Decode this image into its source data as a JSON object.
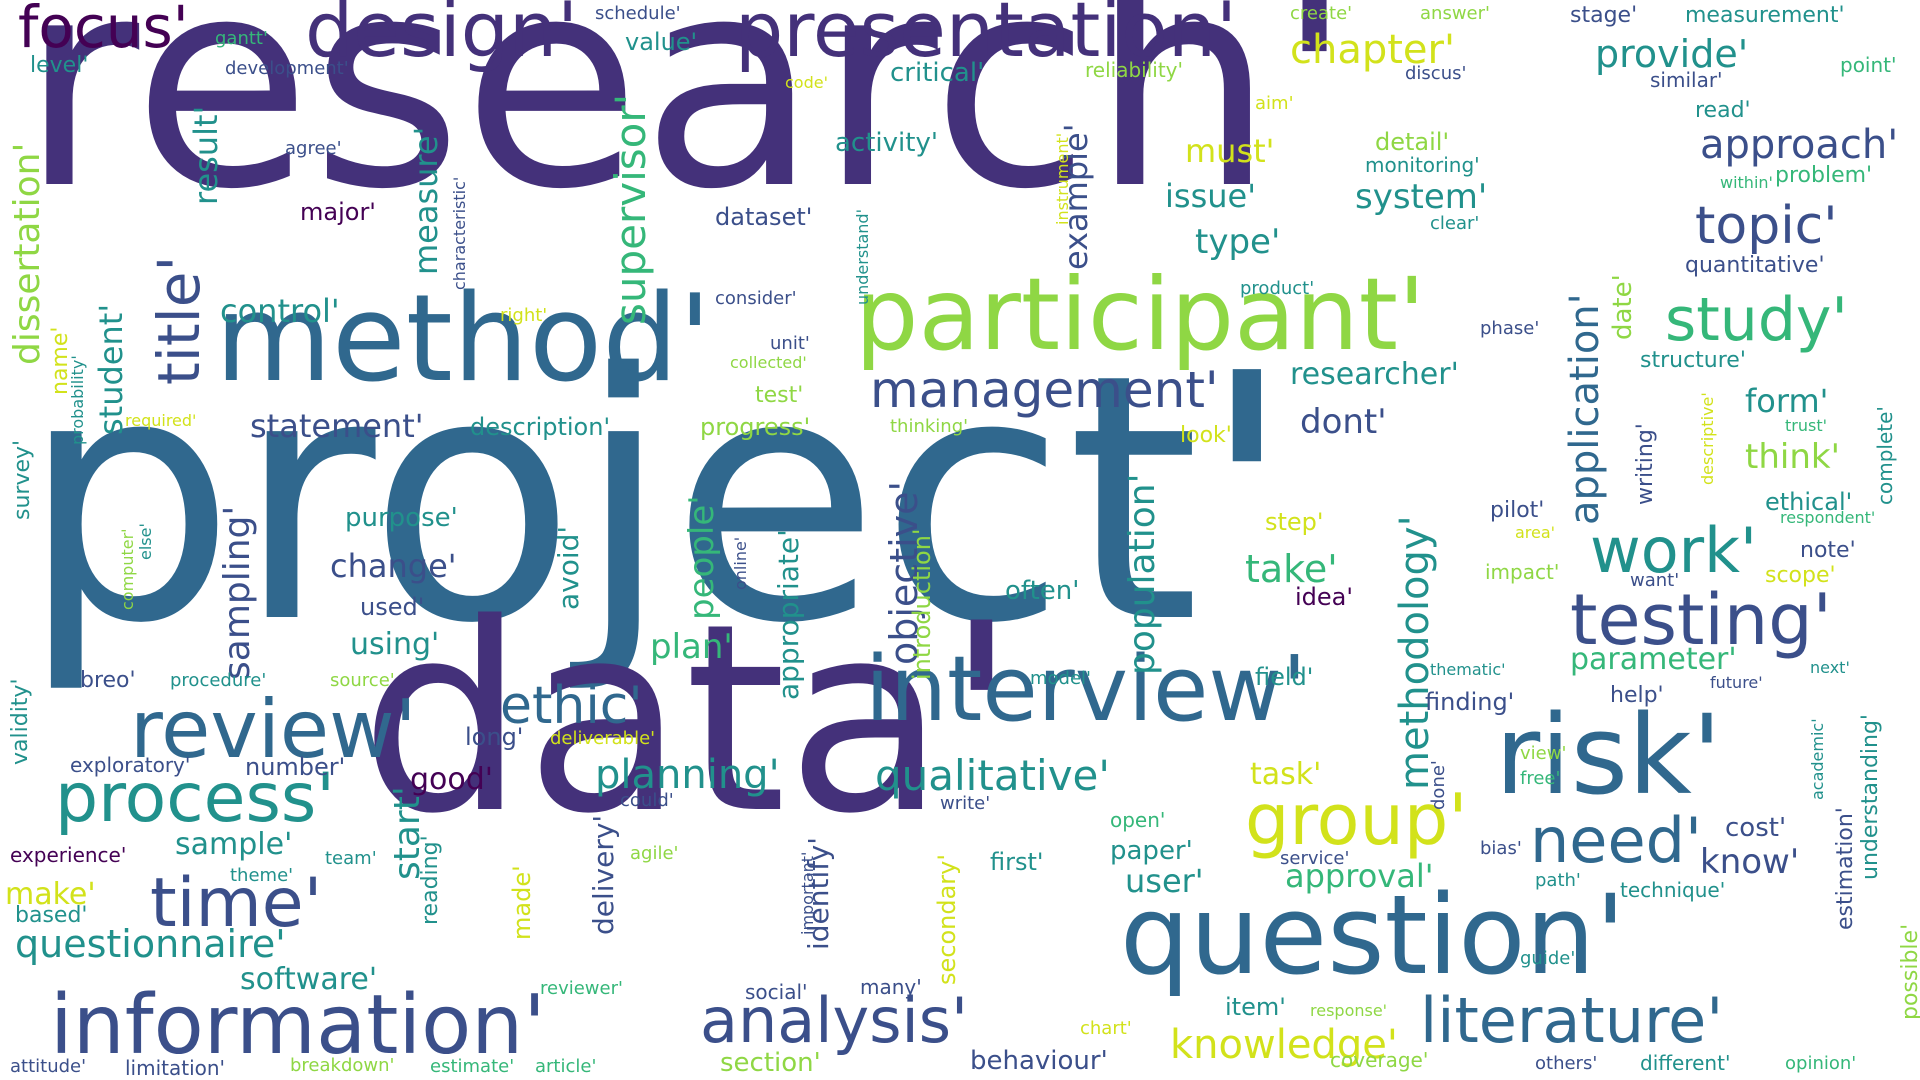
{
  "palette": {
    "dark_purple": "#44317a",
    "indigo": "#3b4f8a",
    "blue": "#30688e",
    "teal": "#21918c",
    "green": "#35b779",
    "lime": "#8fd744",
    "yellow": "#d2e21b",
    "deep": "#440154"
  },
  "words": [
    "research'",
    "project'",
    "data'",
    "question'",
    "method'",
    "participant'",
    "presentation'",
    "design'",
    "focus'",
    "interview'",
    "risk'",
    "review'",
    "information'",
    "analysis'",
    "literature'",
    "process'",
    "time'",
    "group'",
    "testing'",
    "work'",
    "study'",
    "topic'",
    "title'",
    "management'",
    "ethic'",
    "need'",
    "questionnaire'",
    "knowledge'",
    "qualitative'",
    "planning'",
    "approach'",
    "provide'",
    "chapter'",
    "supervisor'",
    "dissertation'",
    "methodology'",
    "application'",
    "objective'",
    "sampling'",
    "population'",
    "statement'",
    "control'",
    "change'",
    "take'",
    "plan'",
    "people'",
    "measure'",
    "result'",
    "student'",
    "example'",
    "system'",
    "issue'",
    "type'",
    "must'",
    "researcher'",
    "dont'",
    "form'",
    "think'",
    "structure'",
    "quantitative'",
    "parameter'",
    "approval'",
    "user'",
    "software'",
    "sample'",
    "start'",
    "using'",
    "purpose'",
    "used'",
    "good'",
    "number'",
    "long'",
    "task'",
    "know'",
    "cost'",
    "paper'",
    "first'",
    "identify'",
    "delivery'",
    "secondary'",
    "introduction'",
    "appropriate'",
    "avoid'",
    "activity'",
    "critical'",
    "dataset'",
    "major'",
    "agree'",
    "level'",
    "development'",
    "gantt'",
    "schedule'",
    "value'",
    "stage'",
    "measurement'",
    "point'",
    "similar'",
    "read'",
    "problem'",
    "within'",
    "detail'",
    "monitoring'",
    "clear'",
    "product'",
    "phase'",
    "consider'",
    "reliability'",
    "code'",
    "discus'",
    "create'",
    "answer'",
    "aim'",
    "instrument'",
    "characteristic'",
    "understand'",
    "right'",
    "unit'",
    "collected'",
    "test'",
    "description'",
    "progress'",
    "thinking'",
    "look'",
    "name'",
    "probability'",
    "required'",
    "survey'",
    "computer'",
    "else'",
    "online'",
    "step'",
    "often'",
    "idea'",
    "pilot'",
    "area'",
    "impact'",
    "ethical'",
    "respondent'",
    "trust'",
    "complete'",
    "descriptive'",
    "writing'",
    "date'",
    "scope'",
    "note'",
    "want'",
    "field'",
    "finding'",
    "help'",
    "thematic'",
    "future'",
    "next'",
    "model'",
    "breo'",
    "procedure'",
    "source'",
    "exploratory'",
    "deliverable'",
    "validity'",
    "could'",
    "write'",
    "open'",
    "agile'",
    "team'",
    "experience'",
    "made'",
    "theme'",
    "make'",
    "based'",
    "reading'",
    "important'",
    "done'",
    "bias'",
    "path'",
    "technique'",
    "service'",
    "view'",
    "free'",
    "academic'",
    "understanding'",
    "estimation'",
    "possible'",
    "guide'",
    "reviewer'",
    "social'",
    "many'",
    "item'",
    "response'",
    "chart'",
    "section'",
    "behaviour'",
    "coverage'",
    "others'",
    "different'",
    "opinion'",
    "attitude'",
    "limitation'",
    "breakdown'",
    "estimate'",
    "article'"
  ]
}
